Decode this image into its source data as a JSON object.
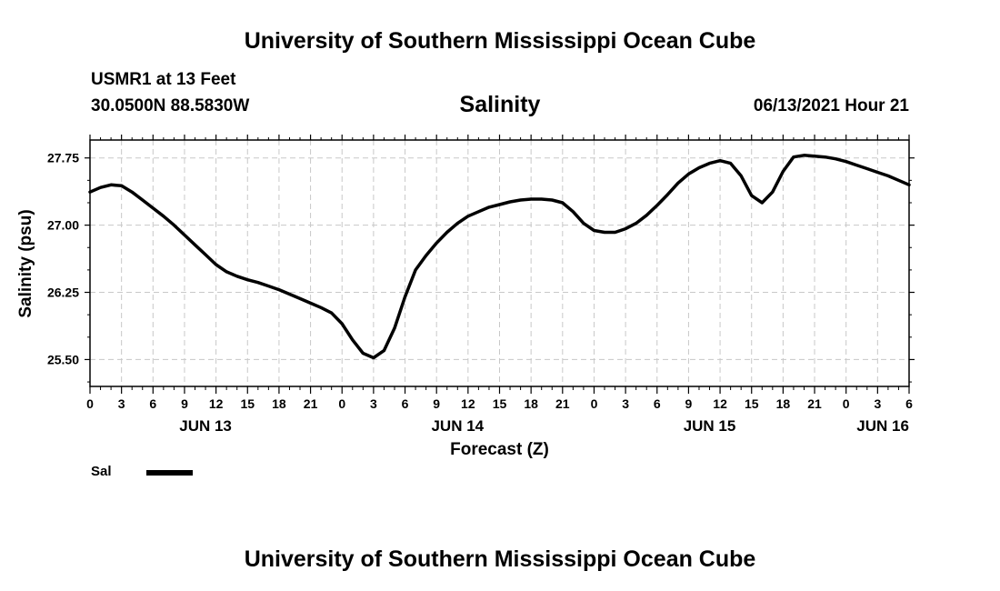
{
  "header": {
    "title_top": "University of Southern Mississippi Ocean Cube",
    "station": "USMR1 at 13 Feet",
    "coords": "30.0500N  88.5830W",
    "variable": "Salinity",
    "timestamp": "06/13/2021 Hour 21",
    "title_bottom": "University of Southern Mississippi Ocean Cube"
  },
  "legend": {
    "label": "Sal",
    "line_color": "#000000"
  },
  "chart_data": {
    "type": "line",
    "title": "Salinity",
    "xlabel": "Forecast (Z)",
    "ylabel": "Salinity (psu)",
    "x_units": "hours since 2021-06-13 00Z",
    "xlim": [
      0,
      78
    ],
    "ylim": [
      25.2,
      27.95
    ],
    "yticks": [
      25.5,
      26.25,
      27.0,
      27.75
    ],
    "ytick_labels": [
      "25.50",
      "26.25",
      "27.00",
      "27.75"
    ],
    "xticks": [
      0,
      3,
      6,
      9,
      12,
      15,
      18,
      21,
      24,
      27,
      30,
      33,
      36,
      39,
      42,
      45,
      48,
      51,
      54,
      57,
      60,
      63,
      66,
      69,
      72,
      75,
      78
    ],
    "xtick_labels": [
      "0",
      "3",
      "6",
      "9",
      "12",
      "15",
      "18",
      "21",
      "0",
      "3",
      "6",
      "9",
      "12",
      "15",
      "18",
      "21",
      "0",
      "3",
      "6",
      "9",
      "12",
      "15",
      "18",
      "21",
      "0",
      "3",
      "6"
    ],
    "date_labels": [
      {
        "x": 11,
        "label": "JUN 13"
      },
      {
        "x": 35,
        "label": "JUN 14"
      },
      {
        "x": 59,
        "label": "JUN 15"
      },
      {
        "x": 75.5,
        "label": "JUN 16"
      }
    ],
    "grid": true,
    "line_color": "#000000",
    "series": [
      {
        "name": "Sal",
        "x": [
          0,
          1,
          2,
          3,
          4,
          5,
          6,
          7,
          8,
          9,
          10,
          11,
          12,
          13,
          14,
          15,
          16,
          17,
          18,
          19,
          20,
          21,
          22,
          23,
          24,
          25,
          26,
          27,
          28,
          29,
          30,
          31,
          32,
          33,
          34,
          35,
          36,
          37,
          38,
          39,
          40,
          41,
          42,
          43,
          44,
          45,
          46,
          47,
          48,
          49,
          50,
          51,
          52,
          53,
          54,
          55,
          56,
          57,
          58,
          59,
          60,
          61,
          62,
          63,
          64,
          65,
          66,
          67,
          68,
          69,
          70,
          71,
          72,
          73,
          74,
          75,
          76,
          77,
          78
        ],
        "values": [
          27.37,
          27.42,
          27.45,
          27.44,
          27.37,
          27.28,
          27.19,
          27.1,
          27.0,
          26.89,
          26.78,
          26.67,
          26.56,
          26.48,
          26.43,
          26.39,
          26.36,
          26.32,
          26.28,
          26.23,
          26.18,
          26.13,
          26.08,
          26.02,
          25.9,
          25.72,
          25.57,
          25.52,
          25.6,
          25.85,
          26.2,
          26.5,
          26.66,
          26.8,
          26.92,
          27.02,
          27.1,
          27.15,
          27.2,
          27.23,
          27.26,
          27.28,
          27.29,
          27.29,
          27.28,
          27.25,
          27.15,
          27.02,
          26.94,
          26.92,
          26.92,
          26.96,
          27.02,
          27.11,
          27.22,
          27.34,
          27.47,
          27.57,
          27.64,
          27.69,
          27.72,
          27.69,
          27.55,
          27.33,
          27.25,
          27.37,
          27.6,
          27.76,
          27.78,
          27.77,
          27.76,
          27.74,
          27.71,
          27.67,
          27.63,
          27.59,
          27.55,
          27.5,
          27.45
        ]
      }
    ]
  }
}
